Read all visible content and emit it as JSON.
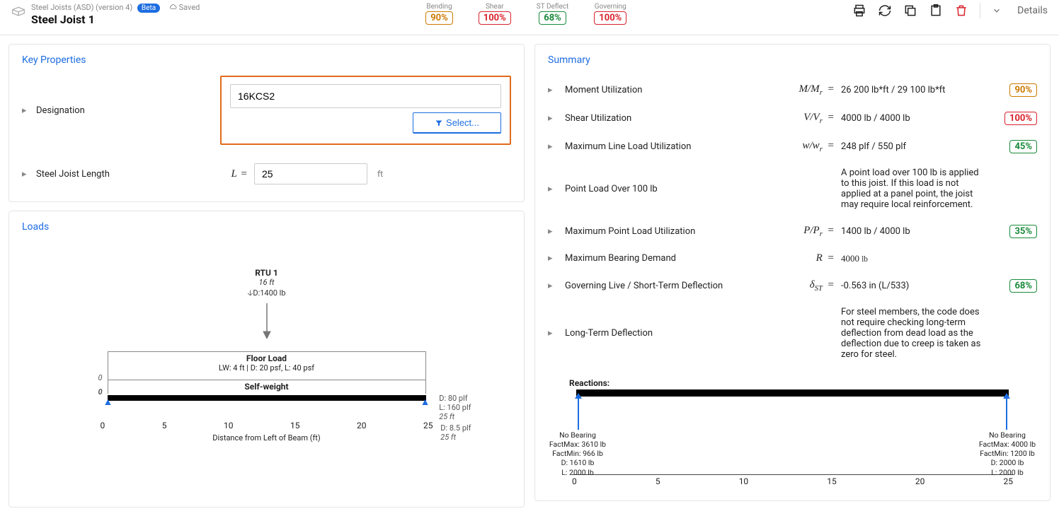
{
  "header": {
    "module": "Steel Joists (ASD) (version 4)",
    "beta": "Beta",
    "saved": "Saved",
    "title": "Steel Joist 1",
    "indicators": [
      {
        "label": "Bending",
        "val": "90%",
        "cls": "orange"
      },
      {
        "label": "Shear",
        "val": "100%",
        "cls": "red"
      },
      {
        "label": "ST Deflect",
        "val": "68%",
        "cls": "green"
      },
      {
        "label": "Governing",
        "val": "100%",
        "cls": "red"
      }
    ],
    "details": "Details"
  },
  "key_props": {
    "title": "Key Properties",
    "designation_label": "Designation",
    "designation_value": "16KCS2",
    "select": "Select...",
    "length_label": "Steel Joist Length",
    "length_sym": "L",
    "length_value": "25",
    "length_unit": "ft"
  },
  "loads": {
    "title": "Loads",
    "point": {
      "name": "RTU 1",
      "pos": "16 ft",
      "mag": "D:1400 lb"
    },
    "floor": {
      "title": "Floor Load",
      "subtitle": "LW: 4 ft | D: 20 psf, L: 40 psf",
      "right1": "D: 80 plf",
      "right2": "L: 160 plf",
      "right3": "25 ft"
    },
    "selfweight": {
      "title": "Self-weight",
      "right1": "D: 8.5 plf",
      "right2": "25 ft"
    },
    "axis_ticks": [
      "0",
      "5",
      "10",
      "15",
      "20",
      "25"
    ],
    "axis_label": "Distance from Left of Beam (ft)"
  },
  "summary": {
    "title": "Summary",
    "rows": [
      {
        "label": "Moment Utilization",
        "sym": "M/M",
        "sub": "r",
        "val": "26 200 lb*ft / 29 100 lb*ft",
        "badge": "90%",
        "cls": "orange"
      },
      {
        "label": "Shear Utilization",
        "sym": "V/V",
        "sub": "r",
        "val": "4000 lb / 4000 lb",
        "badge": "100%",
        "cls": "red"
      },
      {
        "label": "Maximum Line Load Utilization",
        "sym": "w/w",
        "sub": "r",
        "val": "248 plf / 550 plf",
        "badge": "45%",
        "cls": "green"
      },
      {
        "label": "Point Load Over 100 lb",
        "sym": "",
        "sub": "",
        "val": "A point load over 100 lb is applied to this joist. If this load is not applied at a panel point, the joist may require local reinforcement.",
        "badge": "",
        "cls": ""
      },
      {
        "label": "Maximum Point Load Utilization",
        "sym": "P/P",
        "sub": "r",
        "val": "1400 lb / 4000 lb",
        "badge": "35%",
        "cls": "green"
      },
      {
        "label": "Maximum Bearing Demand",
        "sym": "R",
        "sub": "",
        "val_html": "4000 <span style='font-style:normal;font-size:0.85em'>lb</span>",
        "badge": "",
        "cls": ""
      },
      {
        "label": "Governing Live / Short-Term Deflection",
        "sym": "δ",
        "sub": "ST",
        "val": "-0.563 in (L/533)",
        "badge": "68%",
        "cls": "green"
      },
      {
        "label": "Long-Term Deflection",
        "sym": "",
        "sub": "",
        "val": "For steel members, the code does not require checking long-term deflection from dead load as the deflection due to creep is taken as zero for steel.",
        "badge": "",
        "cls": ""
      }
    ],
    "reactions": {
      "title": "Reactions:",
      "left": [
        "No Bearing",
        "FactMax: 3610 lb",
        "FactMin: 966 lb",
        "D: 1610 lb",
        "L: 2000 lb"
      ],
      "right": [
        "No Bearing",
        "FactMax: 4000 lb",
        "FactMin: 1200 lb",
        "D: 2000 lb",
        "L: 2000 lb"
      ],
      "axis_ticks": [
        "0",
        "5",
        "10",
        "15",
        "20",
        "25"
      ]
    }
  },
  "colors": {
    "accent": "#1d6de0",
    "orange": "#cc7a00",
    "red": "#d9212c",
    "green": "#188a3a",
    "highlight": "#e06a1c"
  }
}
